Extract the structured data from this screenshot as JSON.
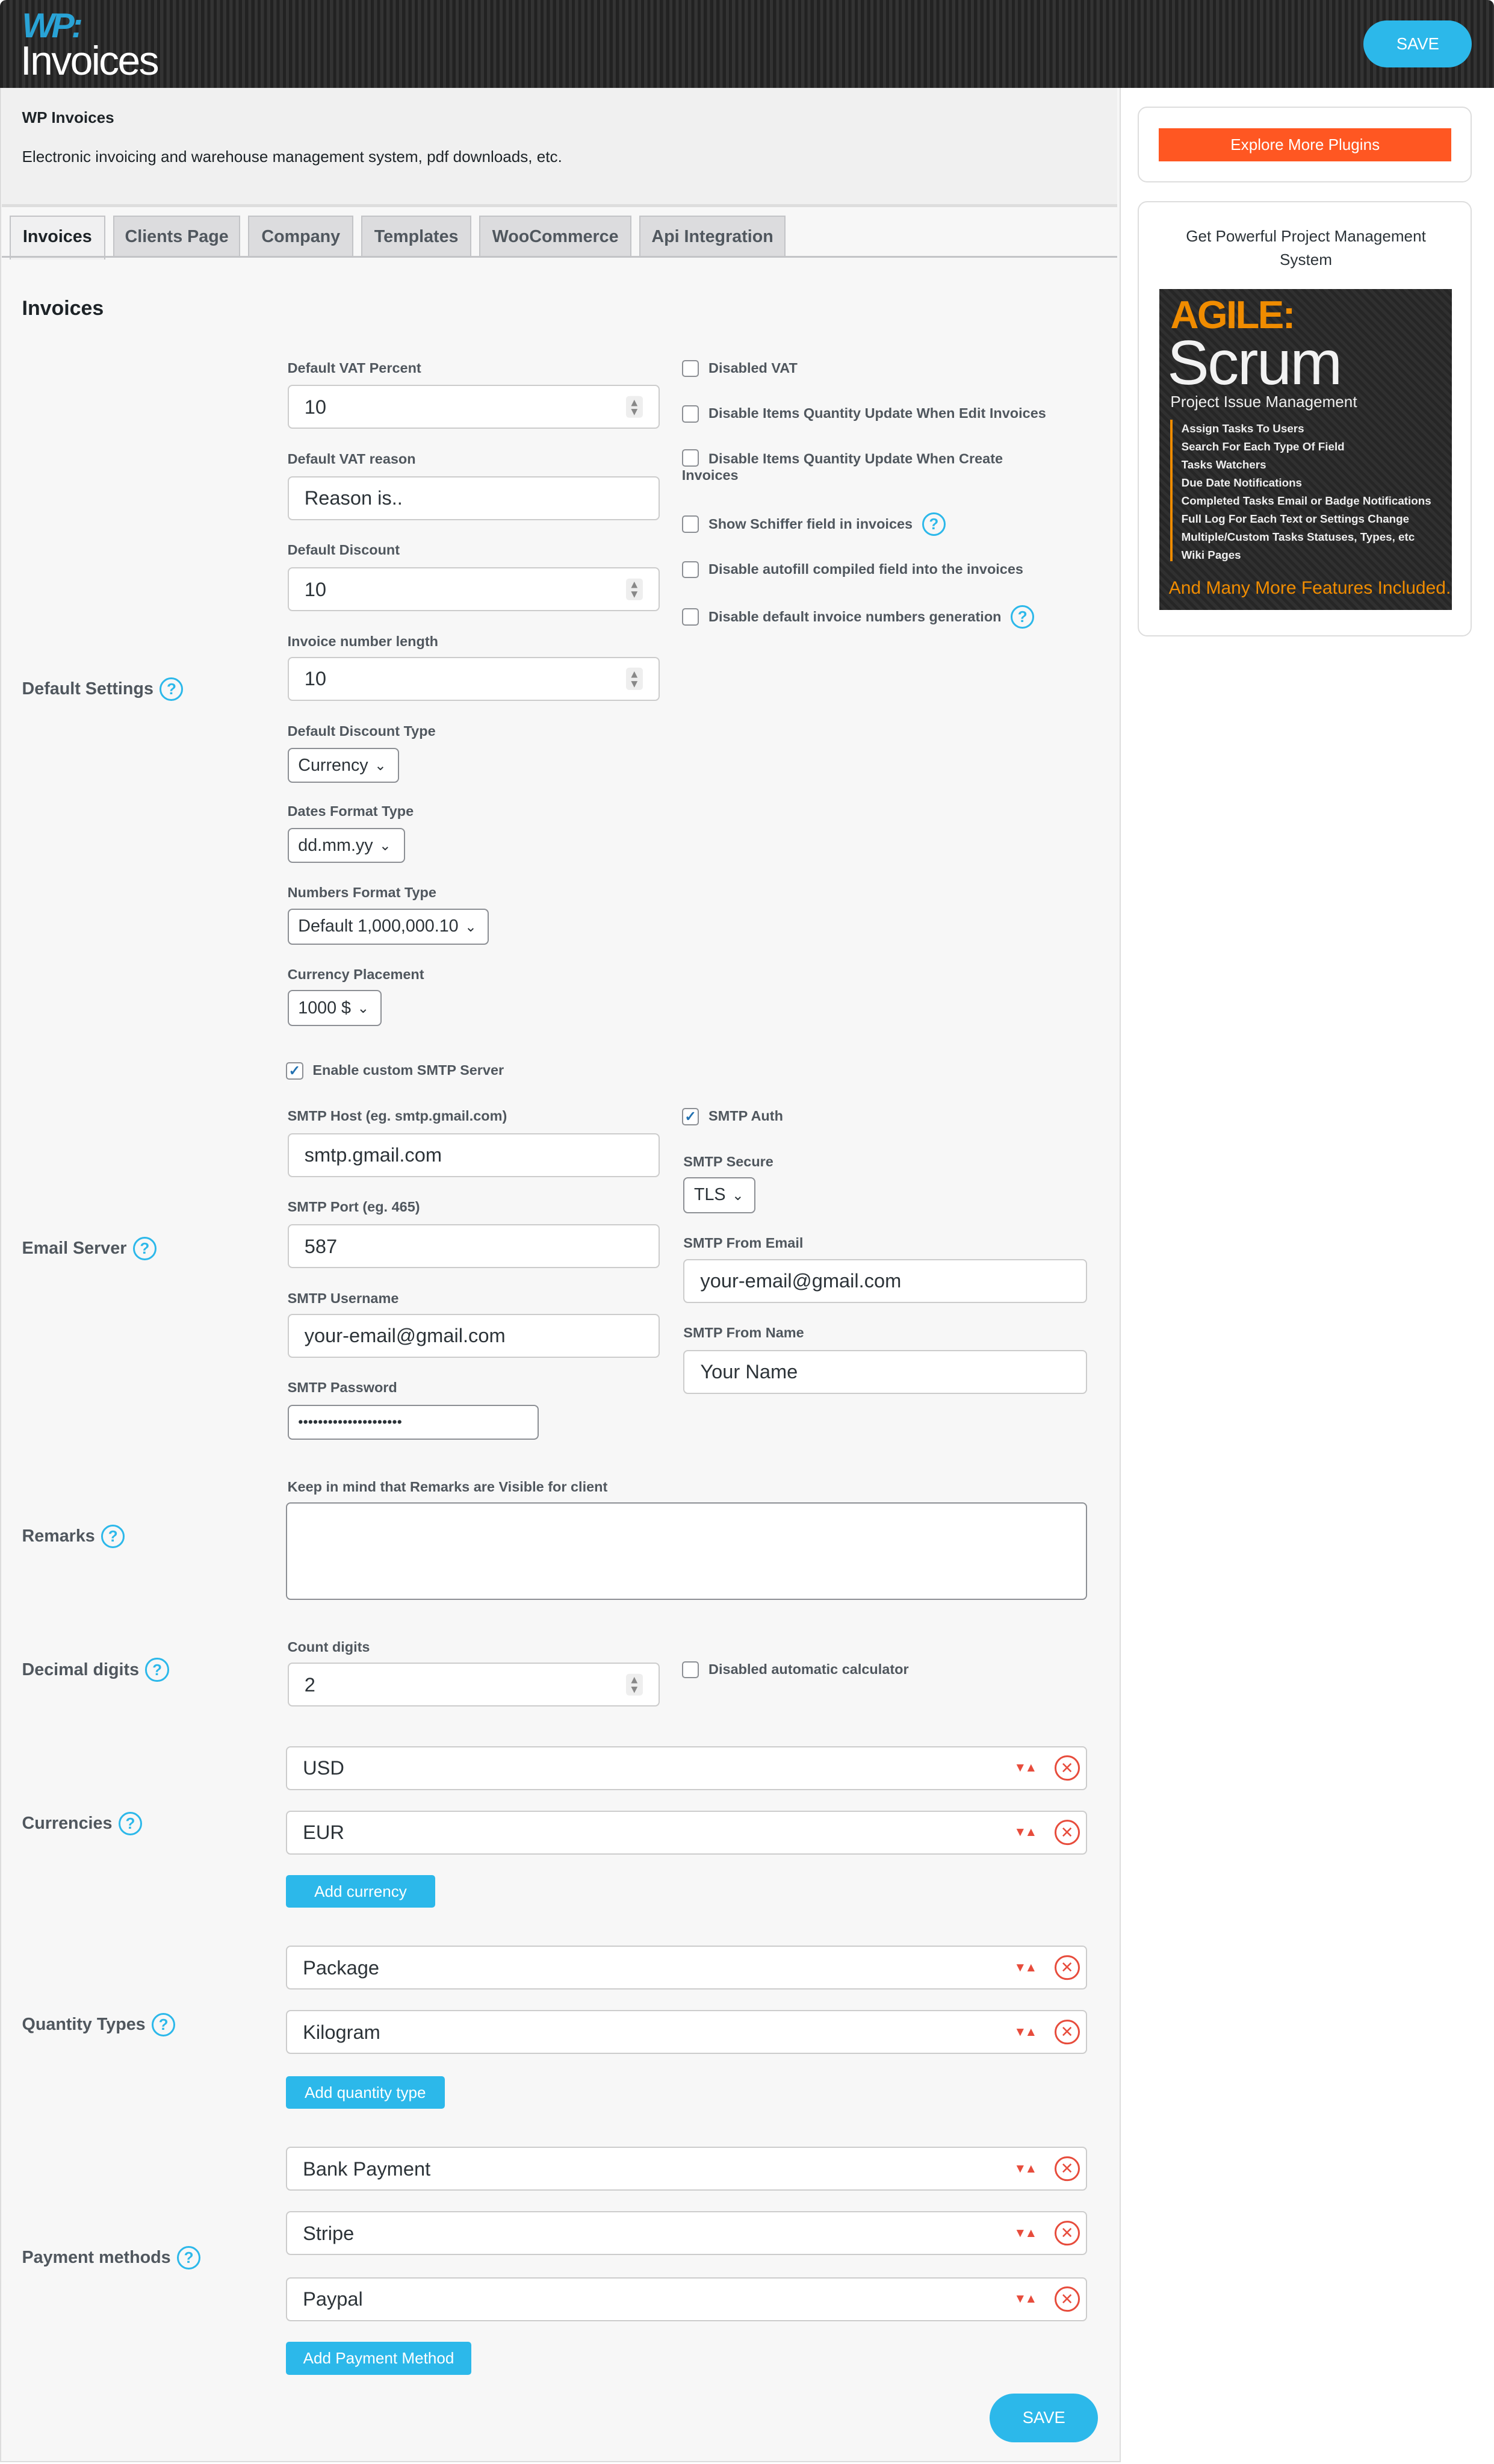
{
  "header": {
    "logo_top": "WP:",
    "logo_bottom": "Invoices",
    "save_label": "SAVE"
  },
  "intro": {
    "title": "WP Invoices",
    "description": "Electronic invoicing and warehouse management system, pdf downloads, etc."
  },
  "tabs": [
    {
      "label": "Invoices",
      "active": true
    },
    {
      "label": "Clients Page"
    },
    {
      "label": "Company"
    },
    {
      "label": "Templates"
    },
    {
      "label": "WooCommerce"
    },
    {
      "label": "Api Integration"
    }
  ],
  "section_title": "Invoices",
  "default_settings": {
    "label": "Default Settings",
    "vat_percent": {
      "label": "Default VAT Percent",
      "value": "10"
    },
    "vat_reason": {
      "label": "Default VAT reason",
      "value": "Reason is.."
    },
    "discount": {
      "label": "Default Discount",
      "value": "10"
    },
    "number_length": {
      "label": "Invoice number length",
      "value": "10"
    },
    "discount_type": {
      "label": "Default Discount Type",
      "value": "Currency"
    },
    "dates_format": {
      "label": "Dates Format Type",
      "value": "dd.mm.yy"
    },
    "numbers_format": {
      "label": "Numbers Format Type",
      "value": "Default 1,000,000.10"
    },
    "currency_placement": {
      "label": "Currency Placement",
      "value": "1000 $"
    },
    "checkboxes": [
      {
        "label": "Disabled VAT",
        "checked": false
      },
      {
        "label": "Disable Items Quantity Update When Edit Invoices",
        "checked": false
      },
      {
        "label": "Disable Items Quantity Update When Create Invoices",
        "checked": false
      },
      {
        "label": "Show Schiffer field in invoices",
        "checked": false
      },
      {
        "label": "Disable autofill compiled field into the invoices",
        "checked": false
      },
      {
        "label": "Disable default invoice numbers generation",
        "checked": false
      }
    ]
  },
  "email_server": {
    "label": "Email Server",
    "enable_smtp": {
      "label": "Enable custom SMTP Server",
      "checked": true
    },
    "host": {
      "label": "SMTP Host (eg. smtp.gmail.com)",
      "value": "smtp.gmail.com"
    },
    "port": {
      "label": "SMTP Port (eg. 465)",
      "value": "587"
    },
    "username": {
      "label": "SMTP Username",
      "value": "your-email@gmail.com"
    },
    "password": {
      "label": "SMTP Password",
      "value": "•••••••••••••••••••••"
    },
    "auth": {
      "label": "SMTP Auth",
      "checked": true
    },
    "secure": {
      "label": "SMTP Secure",
      "value": "TLS"
    },
    "from_email": {
      "label": "SMTP From Email",
      "value": "your-email@gmail.com"
    },
    "from_name": {
      "label": "SMTP From Name",
      "value": "Your Name"
    }
  },
  "remarks": {
    "label": "Remarks",
    "hint": "Keep in mind that Remarks are Visible for client",
    "value": ""
  },
  "decimal": {
    "label": "Decimal digits",
    "count_label": "Count digits",
    "value": "2",
    "calc_label": "Disabled automatic calculator",
    "calc_checked": false
  },
  "currencies": {
    "label": "Currencies",
    "items": [
      "USD",
      "EUR"
    ],
    "add_label": "Add currency"
  },
  "quantity_types": {
    "label": "Quantity Types",
    "items": [
      "Package",
      "Kilogram"
    ],
    "add_label": "Add quantity type"
  },
  "payment_methods": {
    "label": "Payment methods",
    "items": [
      "Bank Payment",
      "Stripe",
      "Paypal"
    ],
    "add_label": "Add Payment Method"
  },
  "help_glyph": "?",
  "footer": {
    "save_label": "SAVE"
  },
  "sidebar": {
    "explore_label": "Explore More Plugins",
    "promo_title": "Get Powerful Project Management System",
    "ad": {
      "agile": "AGILE:",
      "scrum": "Scrum",
      "subtitle": "Project Issue Management",
      "features": [
        "Assign Tasks To Users",
        "Search For Each Type Of Field",
        "Tasks Watchers",
        "Due Date Notifications",
        "Completed Tasks Email or Badge Notifications",
        "Full Log For Each Text or Settings Change",
        "Multiple/Custom Tasks Statuses, Types, etc",
        "Wiki Pages"
      ],
      "footer": "And Many More Features Included.."
    }
  },
  "colors": {
    "accent": "#2cb8ea",
    "danger": "#e74c3c",
    "orange": "#ff5722",
    "header": "#2b2b2b"
  }
}
